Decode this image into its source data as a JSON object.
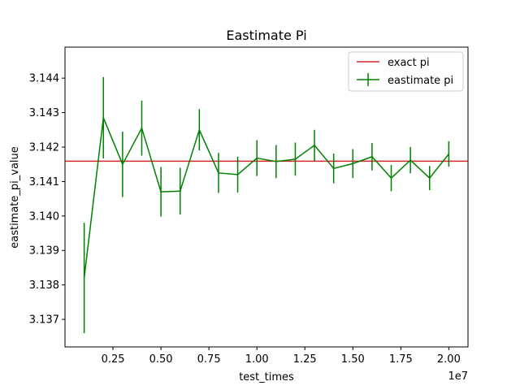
{
  "chart_data": {
    "type": "line",
    "title": "Eastimate Pi",
    "xlabel": "test_times",
    "ylabel": "eastimate_pi_value",
    "x_offset_label": "1e7",
    "xlim": [
      0.0,
      2.1
    ],
    "ylim": [
      3.1362,
      3.1449
    ],
    "x_ticks": [
      0.25,
      0.5,
      0.75,
      1.0,
      1.25,
      1.5,
      1.75,
      2.0
    ],
    "x_tick_labels": [
      "0.25",
      "0.50",
      "0.75",
      "1.00",
      "1.25",
      "1.50",
      "1.75",
      "2.00"
    ],
    "y_ticks": [
      3.137,
      3.138,
      3.139,
      3.14,
      3.141,
      3.142,
      3.143,
      3.144
    ],
    "y_tick_labels": [
      "3.137",
      "3.138",
      "3.139",
      "3.140",
      "3.141",
      "3.142",
      "3.143",
      "3.144"
    ],
    "grid": false,
    "legend_position": "top-right",
    "hline": {
      "name": "exact pi",
      "value": 3.14159,
      "color": "#d62728"
    },
    "series": [
      {
        "name": "eastimate pi",
        "color": "#008000",
        "x": [
          0.1,
          0.2,
          0.3,
          0.4,
          0.5,
          0.6,
          0.7,
          0.8,
          0.9,
          1.0,
          1.1,
          1.2,
          1.3,
          1.4,
          1.5,
          1.6,
          1.7,
          1.8,
          1.9,
          2.0
        ],
        "y": [
          3.1382,
          3.14285,
          3.1415,
          3.14255,
          3.1407,
          3.14072,
          3.1425,
          3.14125,
          3.1412,
          3.14168,
          3.14158,
          3.14165,
          3.14205,
          3.14138,
          3.14152,
          3.14172,
          3.1411,
          3.14162,
          3.1411,
          3.1418
        ],
        "yerr": [
          0.0016,
          0.00118,
          0.00095,
          0.0008,
          0.00072,
          0.00068,
          0.0006,
          0.00058,
          0.00052,
          0.00052,
          0.00048,
          0.00048,
          0.00045,
          0.00043,
          0.00042,
          0.0004,
          0.00038,
          0.00038,
          0.00035,
          0.00037
        ]
      }
    ]
  }
}
